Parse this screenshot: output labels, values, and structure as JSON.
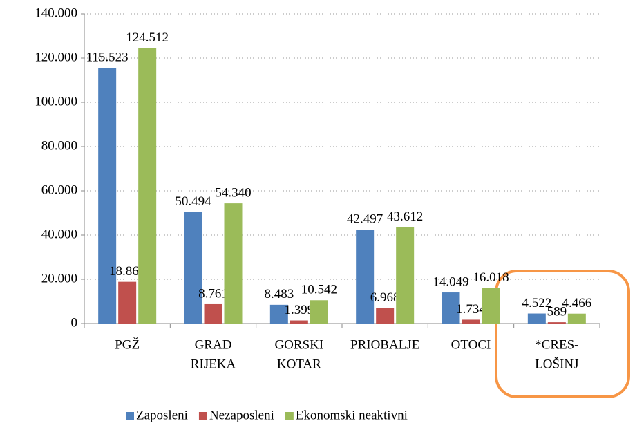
{
  "chart_data": {
    "type": "bar",
    "categories": [
      [
        "PGŽ"
      ],
      [
        "GRAD",
        "RIJEKA"
      ],
      [
        "GORSKI",
        "KOTAR"
      ],
      [
        "PRIOBALJE"
      ],
      [
        "OTOCI"
      ],
      [
        "*CRES-",
        "LOŠINJ"
      ]
    ],
    "series": [
      {
        "name": "Zaposleni",
        "color": "#4f81bd",
        "values": [
          115523,
          50494,
          8483,
          42497,
          14049,
          4522
        ],
        "value_labels": [
          "115.523",
          "50.494",
          "8.483",
          "42.497",
          "14.049",
          "4.522"
        ]
      },
      {
        "name": "Nezaposleni",
        "color": "#c0504d",
        "values": [
          18862,
          8761,
          1399,
          6968,
          1734,
          589
        ],
        "value_labels": [
          "18.862",
          "8.761",
          "1.399",
          "6.968",
          "1.734",
          "589"
        ]
      },
      {
        "name": "Ekonomski neaktivni",
        "color": "#9bbb59",
        "values": [
          124512,
          54340,
          10542,
          43612,
          16018,
          4466
        ],
        "value_labels": [
          "124.512",
          "54.340",
          "10.542",
          "43.612",
          "16.018",
          "4.466"
        ]
      }
    ],
    "ylim": [
      0,
      140000
    ],
    "yticks": [
      0,
      {
        "value": 20000,
        "label": "20.000"
      },
      {
        "value": 40000,
        "label": "40.000"
      },
      {
        "value": 60000,
        "label": "60.000"
      },
      {
        "value": 80000,
        "label": "80.000"
      },
      {
        "value": 100000,
        "label": "100.000"
      },
      {
        "value": 120000,
        "label": "120.000"
      },
      {
        "value": 140000,
        "label": "140.000"
      }
    ],
    "grid": true,
    "legend": "bottom"
  }
}
